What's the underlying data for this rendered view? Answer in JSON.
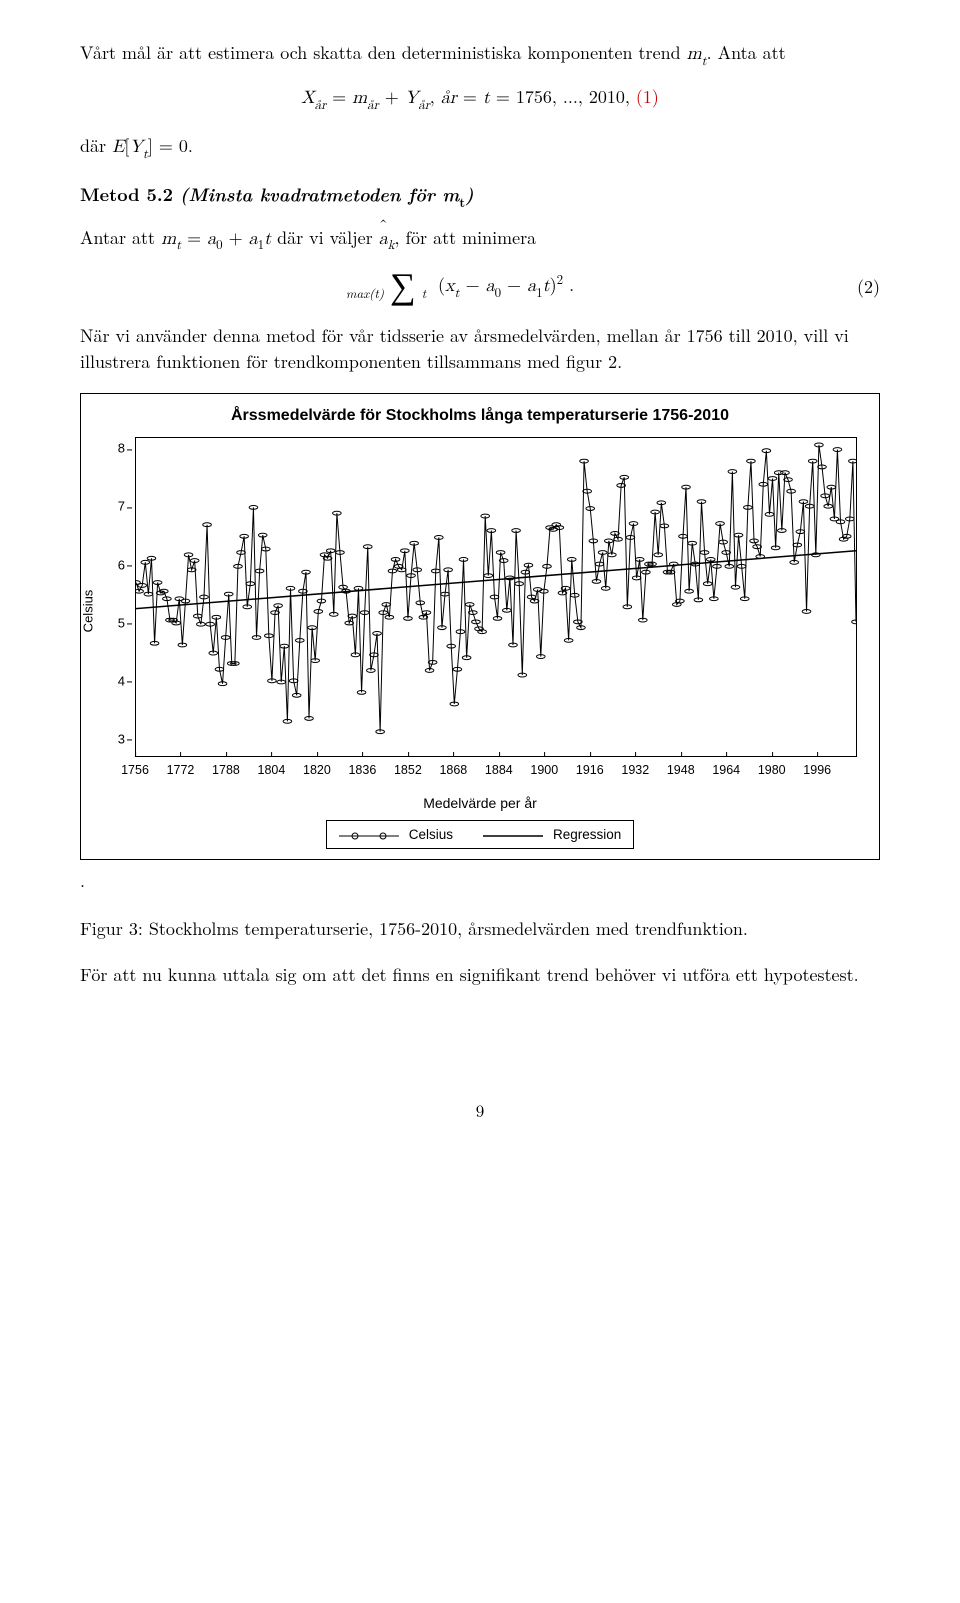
{
  "para1_a": "Vårt mål är att estimera och skatta den deterministiska komponenten trend ",
  "para1_b": ". Anta att",
  "m_t": "m",
  "t_sub": "t",
  "eq1_lhs": "X",
  "ar_sub": "år",
  "eq1_eq": " = ",
  "eq1_m": "m",
  "eq1_plus": " + ",
  "eq1_Y": "Y",
  "eq1_comma": ",  ",
  "eq1_ar": "år",
  "eq1_eq2": " = ",
  "eq1_t": "t",
  "eq1_range": " = 1756, ..., 2010, ",
  "eq1_num": "(1)",
  "para2_a": "där ",
  "para2_b": "E",
  "para2_c": "[",
  "para2_d": "Y",
  "para2_e": "] = 0.",
  "metod_label": "Metod 5.2 ",
  "metod_title": "(Minsta kvadratmetoden för m",
  "metod_t": "t",
  "metod_close": ")",
  "para3_a": "Antar att ",
  "para3_b": " = ",
  "a0": "a",
  "zero": "0",
  "plus": " + ",
  "a1": "a",
  "one": "1",
  "para3_c": " där vi väljer ",
  "ak_a": "a",
  "ak_k": "k",
  "para3_d": ", för att minimera",
  "sum_top": "max(t)",
  "sum_bot": "t",
  "eq2_open": "(",
  "eq2_x": "x",
  "eq2_minus": " − ",
  "eq2_close": ")",
  "eq2_sq": "2",
  "eq2_period": " .",
  "eq2_num": "(2)",
  "para4": "När vi använder denna metod för vår tidsserie av årsmedelvärden, mellan år 1756 till 2010, vill vi illustrera funktionen för trendkomponenten tillsammans med figur 2.",
  "chart": {
    "title": "Årssmedelvärde för Stockholms långa temperaturserie 1756-2010",
    "ylabel": "Celsius",
    "xlabel": "Medelvärde per år",
    "xlim": [
      1756,
      2010
    ],
    "ylim": [
      2.7,
      8.2
    ],
    "yticks": [
      3,
      4,
      5,
      6,
      7,
      8
    ],
    "xticks": [
      1756,
      1772,
      1788,
      1804,
      1820,
      1836,
      1852,
      1868,
      1884,
      1900,
      1916,
      1932,
      1948,
      1964,
      1980,
      1996
    ],
    "trend_y0": 5.25,
    "trend_y1": 6.25,
    "legend_series": "Celsius",
    "legend_trend": "Regression",
    "marker_r": 2.6,
    "line_color": "#000000",
    "bg": "#ffffff",
    "border": "#000000",
    "title_fontsize": 16,
    "label_fontsize": 13,
    "values": [
      5.7,
      5.55,
      5.65,
      6.05,
      5.5,
      6.12,
      4.65,
      5.7,
      5.52,
      5.55,
      5.42,
      5.05,
      5.05,
      5.0,
      5.42,
      4.62,
      5.38,
      6.18,
      5.92,
      6.08,
      5.12,
      4.98,
      5.45,
      6.7,
      4.98,
      4.48,
      5.1,
      4.2,
      3.95,
      4.75,
      5.5,
      4.3,
      4.3,
      5.98,
      6.22,
      6.5,
      5.28,
      5.68,
      7.0,
      4.75,
      5.9,
      6.52,
      6.28,
      4.78,
      4.0,
      5.18,
      5.3,
      3.98,
      4.6,
      3.3,
      5.6,
      4.0,
      3.75,
      4.7,
      5.55,
      5.88,
      3.35,
      4.92,
      4.35,
      5.2,
      5.38,
      6.18,
      6.12,
      6.25,
      5.15,
      6.9,
      6.22,
      5.62,
      5.55,
      5.0,
      5.12,
      4.45,
      5.6,
      3.8,
      5.18,
      6.32,
      4.18,
      4.45,
      4.82,
      3.12,
      5.18,
      5.32,
      5.1,
      5.9,
      6.1,
      5.98,
      5.92,
      6.25,
      5.08,
      5.82,
      6.38,
      5.92,
      5.35,
      5.1,
      5.18,
      4.18,
      4.32,
      5.9,
      6.48,
      4.92,
      5.5,
      5.92,
      4.6,
      3.6,
      4.2,
      4.85,
      6.1,
      4.4,
      5.32,
      5.18,
      5.02,
      4.9,
      4.85,
      6.85,
      5.82,
      6.6,
      5.45,
      5.08,
      6.22,
      6.08,
      5.22,
      5.78,
      4.62,
      6.6,
      5.68,
      4.1,
      5.88,
      6.0,
      5.45,
      5.38,
      5.58,
      4.42,
      5.55,
      5.98,
      6.65,
      6.62,
      6.7,
      6.65,
      5.52,
      5.6,
      4.7,
      6.1,
      5.48,
      5.02,
      4.92,
      7.8,
      7.28,
      6.98,
      6.42,
      5.72,
      6.02,
      6.22,
      5.6,
      6.42,
      6.18,
      6.55,
      6.45,
      7.38,
      7.52,
      5.28,
      6.48,
      6.72,
      5.78,
      6.1,
      5.05,
      5.88,
      6.02,
      6.02,
      6.92,
      6.18,
      7.08,
      6.68,
      5.88,
      5.88,
      6.02,
      5.32,
      5.38,
      6.5,
      7.35,
      5.55,
      6.38,
      6.02,
      5.4,
      7.1,
      6.22,
      5.68,
      6.1,
      5.42,
      5.98,
      6.72,
      6.4,
      6.22,
      5.98,
      7.62,
      5.62,
      6.52,
      5.98,
      5.42,
      7.0,
      7.8,
      6.42,
      6.32,
      6.15,
      7.4,
      7.98,
      6.88,
      7.5,
      6.3,
      7.6,
      6.6,
      7.6,
      7.48,
      7.28,
      6.05,
      6.35,
      6.58,
      7.1,
      5.2,
      7.02,
      7.8,
      6.18,
      8.08,
      7.7,
      7.2,
      7.02,
      7.35,
      6.8,
      8.0,
      6.75,
      6.45,
      6.5,
      6.8,
      7.8,
      5.02
    ]
  },
  "caption_a": "Figur 3:  Stockholms temperaturserie, 1756-2010, årsmedelvärden med trendfunktion.",
  "para5": "För att nu kunna uttala sig om att det finns en signifikant trend behöver vi utföra ett hypotestest.",
  "page_num": "9"
}
